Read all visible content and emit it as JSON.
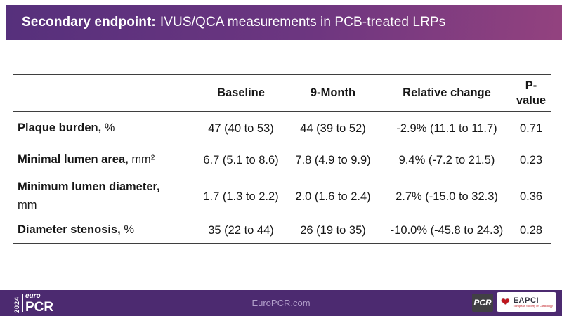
{
  "slide": {
    "title_bold": "Secondary endpoint:",
    "title_rest": "IVUS/QCA measurements in PCB-treated LRPs"
  },
  "table": {
    "headers": [
      "",
      "Baseline",
      "9-Month",
      "Relative change",
      "P-\nvalue"
    ],
    "rows": [
      {
        "label": "Plaque burden,",
        "unit": "%",
        "values": [
          "47 (40 to 53)",
          "44 (39 to 52)",
          "-2.9% (11.1 to 11.7)",
          "0.71"
        ]
      },
      {
        "label": "Minimal lumen area,",
        "unit": "mm²",
        "values": [
          "6.7 (5.1 to 8.6)",
          "7.8 (4.9 to 9.9)",
          "9.4% (-7.2 to 21.5)",
          "0.23"
        ]
      },
      {
        "label": "Minimum lumen diameter,",
        "unit": "mm",
        "values": [
          "1.7 (1.3 to 2.2)",
          "2.0 (1.6 to 2.4)",
          "2.7% (-15.0 to 32.3)",
          "0.36"
        ]
      },
      {
        "label": "Diameter stenosis,",
        "unit": "%",
        "values": [
          "35 (22 to 44)",
          "26 (19 to 35)",
          "-10.0% (-45.8 to 24.3)",
          "0.28"
        ]
      }
    ]
  },
  "footer": {
    "url": "EuroPCR.com",
    "logo": {
      "year": "2024",
      "euro": "euro",
      "pcr": "PCR"
    },
    "pcr_badge": "PCR",
    "eapci": {
      "name": "EAPCI",
      "subtext": "European Society of Cardiology",
      "heart_icon": "heart-icon"
    }
  },
  "colors": {
    "title_gradient_left": "#56307c",
    "title_gradient_right": "#93427f",
    "footer_purple": "#4c2a70",
    "table_line": "#3f3f3f",
    "footer_url_text": "#b3a0cb",
    "eapci_red": "#c0161d"
  }
}
